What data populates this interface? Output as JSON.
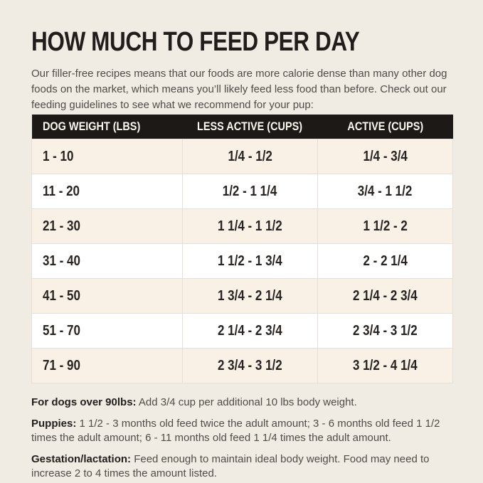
{
  "page": {
    "title": "HOW MUCH TO FEED PER DAY",
    "intro": "Our filler-free recipes means that our foods are more calorie dense than many other dog foods on the market, which means you’ll likely feed less food than before. Check out our feeding guidelines to see what we recommend for your pup:"
  },
  "table": {
    "headers": [
      "DOG WEIGHT (LBS)",
      "LESS ACTIVE (CUPS)",
      "ACTIVE (CUPS)"
    ],
    "rows": [
      [
        "1 - 10",
        "1/4 - 1/2",
        "1/4 - 3/4"
      ],
      [
        "11 - 20",
        "1/2 - 1 1/4",
        "3/4 - 1 1/2"
      ],
      [
        "21 - 30",
        "1 1/4 - 1 1/2",
        "1 1/2 - 2"
      ],
      [
        "31 - 40",
        "1 1/2 - 1 3/4",
        "2 - 2 1/4"
      ],
      [
        "41 - 50",
        "1 3/4 - 2 1/4",
        "2 1/4 - 2 3/4"
      ],
      [
        "51 - 70",
        "2 1/4 - 2 3/4",
        "2 3/4 - 3 1/2"
      ],
      [
        "71 - 90",
        "2 3/4 - 3 1/2",
        "3 1/2 - 4 1/4"
      ]
    ]
  },
  "notes": [
    {
      "label": "For dogs over 90lbs:",
      "text": "Add 3/4 cup per additional 10 lbs body weight."
    },
    {
      "label": "Puppies:",
      "text": "1 1/2 - 3 months old feed twice the adult amount; 3 - 6 months old feed 1 1/2 times the adult amount; 6 - 11 months old feed 1 1/4 times the adult amount."
    },
    {
      "label": "Gestation/lactation:",
      "text": "Feed enough to maintain ideal body weight. Food may need to increase 2 to 4 times the amount listed."
    }
  ],
  "colors": {
    "page_background": "#f1ece3",
    "header_background": "#1d1917",
    "header_text": "#fbf8f2",
    "row_cream": "#f9f1e6",
    "row_white": "#ffffff",
    "cell_border": "#e5e0d7",
    "title_text": "#211d1b",
    "body_text": "#4f4c48"
  }
}
